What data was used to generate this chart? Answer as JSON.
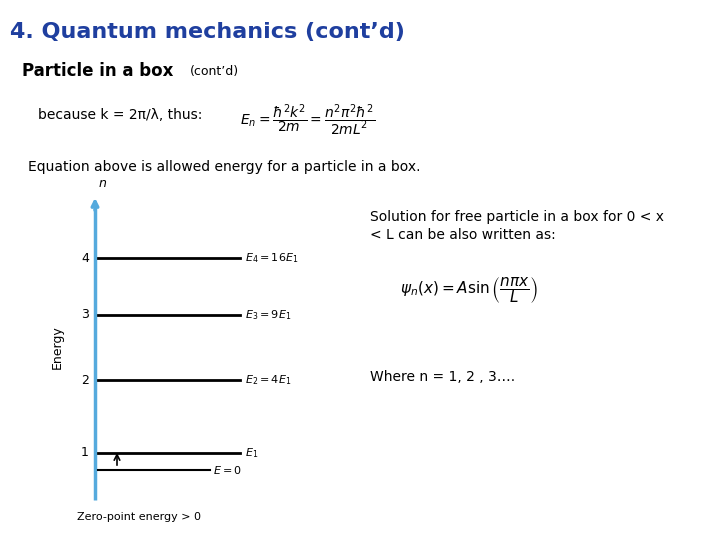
{
  "title": "4. Quantum mechanics (cont’d)",
  "subtitle_bold": "Particle in a box",
  "subtitle_small": "(cont’d)",
  "background_color": "#ffffff",
  "title_color": "#1F3F9F",
  "title_fontsize": 16,
  "subtitle_fontsize": 12,
  "subtitle_small_fontsize": 9,
  "body_fontsize": 10,
  "text_color": "#000000",
  "line1": "because k = 2π/λ, thus:",
  "eq1": "$E_n = \\dfrac{\\hbar^2 k^2}{2m} = \\dfrac{n^2\\pi^2\\hbar^2}{2mL^2}$",
  "line2": "Equation above is allowed energy for a particle in a box.",
  "line3a": "Solution for free particle in a box for 0 < x",
  "line3b": "< L can be also written as:",
  "eq2": "$\\psi_n(x) = A\\sin\\left(\\dfrac{n\\pi x}{L}\\right)$",
  "line4": "Where n = 1, 2 , 3….",
  "axis_color": "#55AADD",
  "energy_levels": [
    1,
    2,
    3,
    4
  ],
  "energy_labels": [
    "$E_1$",
    "$E_2 = 4E_1$",
    "$E_3 = 9E_1$",
    "$E_4 = 16E_1$"
  ],
  "zero_label": "$E = 0$",
  "zero_point_text": "Zero-point energy > 0",
  "n_label": "n"
}
